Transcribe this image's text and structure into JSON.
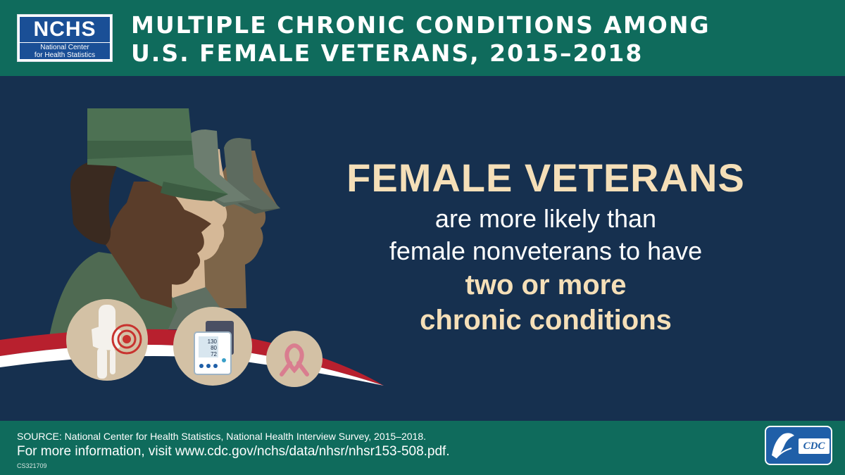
{
  "header": {
    "logo": {
      "name": "NCHS",
      "line1": "National Center",
      "line2": "for Health Statistics"
    },
    "title_line1": "MULTIPLE CHRONIC CONDITIONS AMONG",
    "title_line2": "U.S. FEMALE VETERANS, 2015–2018"
  },
  "main": {
    "headline": "FEMALE VETERANS",
    "line1": "are more likely than",
    "line2": "female nonveterans to have",
    "emphasis1": "two or more",
    "emphasis2": "chronic conditions"
  },
  "illustration": {
    "bp_monitor": {
      "systolic": "130",
      "diastolic": "80",
      "pulse": "72"
    },
    "icons": [
      "veteran-silhouettes-icon",
      "knee-joint-pain-icon",
      "blood-pressure-monitor-icon",
      "awareness-ribbon-icon"
    ]
  },
  "footer": {
    "source": "SOURCE: National Center for Health Statistics, National Health Interview Survey, 2015–2018.",
    "more_info": "For more information, visit www.cdc.gov/nchs/data/nhsr/nhsr153-508.pdf.",
    "code": "CS321709",
    "cdc_logo": "CDC"
  },
  "colors": {
    "header_bg": "#0f6b5c",
    "main_bg": "#16304f",
    "headline": "#f5dfb8",
    "nchs_blue": "#1a4f96",
    "ribbon_red": "#b8202e",
    "icon_circle": "#d3c1a5"
  }
}
